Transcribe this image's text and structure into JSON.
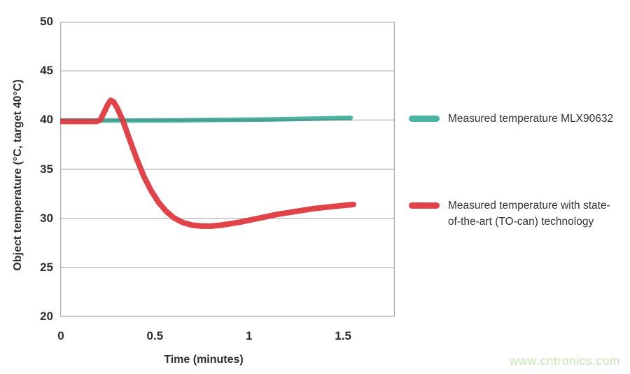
{
  "watermark": "www.cntronics.com",
  "colors": {
    "teal": "#4ab4a3",
    "red": "#e14348",
    "grid": "#ababab",
    "target_line": "#555555",
    "text": "#2e2e2e",
    "watermark": "#c6e6b4"
  },
  "chart_data": {
    "type": "line",
    "title": "",
    "xlabel": "Time (minutes)",
    "ylabel": "Object temperature (°C, target 40°C)",
    "xlim": [
      0,
      1.775
    ],
    "ylim": [
      20,
      50
    ],
    "xticks": [
      0,
      0.5,
      1,
      1.5
    ],
    "yticks": [
      20,
      25,
      30,
      35,
      40,
      45,
      50
    ],
    "grid": true,
    "legend_position": "right",
    "target_value": 40,
    "target_span": [
      0,
      1.54
    ],
    "series": [
      {
        "name": "Measured temperature MLX90632",
        "color": "#4ab4a3",
        "width": 6.5,
        "x": [
          0,
          0.2,
          0.4,
          0.6,
          0.8,
          1.0,
          1.15,
          1.3,
          1.4,
          1.5,
          1.54
        ],
        "y": [
          39.95,
          39.95,
          39.95,
          39.97,
          40.0,
          40.03,
          40.07,
          40.12,
          40.16,
          40.2,
          40.22
        ]
      },
      {
        "name": "Measured temperature with state-of-the-art (TO-can) technology",
        "color": "#e14348",
        "width": 8,
        "x": [
          0,
          0.05,
          0.1,
          0.15,
          0.19,
          0.21,
          0.23,
          0.25,
          0.265,
          0.28,
          0.3,
          0.33,
          0.36,
          0.4,
          0.44,
          0.48,
          0.52,
          0.56,
          0.6,
          0.65,
          0.7,
          0.75,
          0.8,
          0.85,
          0.9,
          0.95,
          1.0,
          1.05,
          1.1,
          1.15,
          1.2,
          1.25,
          1.3,
          1.35,
          1.4,
          1.45,
          1.5,
          1.555
        ],
        "y": [
          39.85,
          39.85,
          39.85,
          39.85,
          39.85,
          40.0,
          40.8,
          41.6,
          42.0,
          41.85,
          41.2,
          39.9,
          38.3,
          36.2,
          34.3,
          32.8,
          31.6,
          30.7,
          30.05,
          29.55,
          29.3,
          29.2,
          29.2,
          29.3,
          29.45,
          29.6,
          29.8,
          30.0,
          30.2,
          30.4,
          30.55,
          30.7,
          30.85,
          31.0,
          31.1,
          31.2,
          31.3,
          31.4
        ]
      }
    ]
  }
}
